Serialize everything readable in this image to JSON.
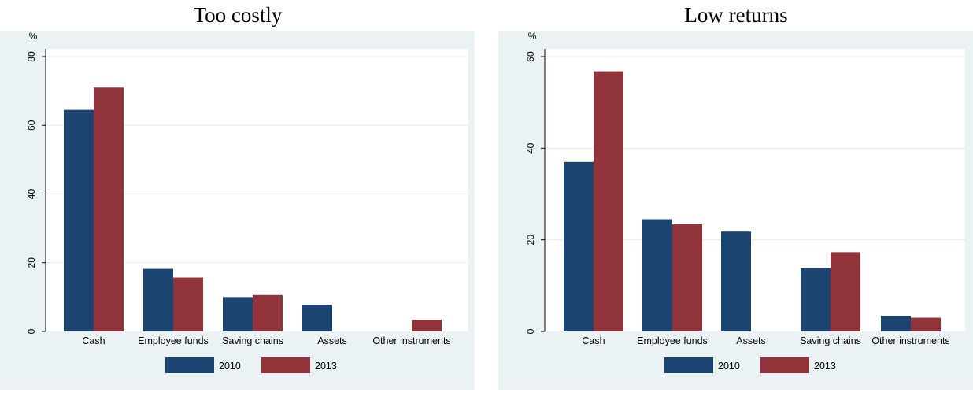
{
  "chart_data": [
    {
      "type": "bar",
      "title": "Too costly",
      "ylabel": "%",
      "xlabel": "",
      "ylim": [
        0,
        80
      ],
      "yticks": [
        0,
        20,
        40,
        60,
        80
      ],
      "categories": [
        "Cash",
        "Employee funds",
        "Saving chains",
        "Assets",
        "Other instruments"
      ],
      "series": [
        {
          "name": "2010",
          "values": [
            64.5,
            18.2,
            10.0,
            7.8,
            0
          ]
        },
        {
          "name": "2013",
          "values": [
            71.0,
            15.7,
            10.6,
            0,
            3.4
          ]
        }
      ],
      "grid": true,
      "legend": "bottom-center"
    },
    {
      "type": "bar",
      "title": "Low returns",
      "ylabel": "%",
      "xlabel": "",
      "ylim": [
        0,
        60
      ],
      "yticks": [
        0,
        20,
        40,
        60
      ],
      "categories": [
        "Cash",
        "Employee funds",
        "Assets",
        "Saving chains",
        "Other instruments"
      ],
      "series": [
        {
          "name": "2010",
          "values": [
            37.0,
            24.5,
            21.8,
            13.8,
            3.4
          ]
        },
        {
          "name": "2013",
          "values": [
            56.8,
            23.4,
            0,
            17.3,
            3.0
          ]
        }
      ],
      "grid": true,
      "legend": "bottom-center"
    }
  ],
  "colors": {
    "series": [
      "#1b4470",
      "#91333b"
    ],
    "panel_background": "#eaf2f3",
    "plot_background": "#ffffff",
    "grid": "#e5edee"
  }
}
